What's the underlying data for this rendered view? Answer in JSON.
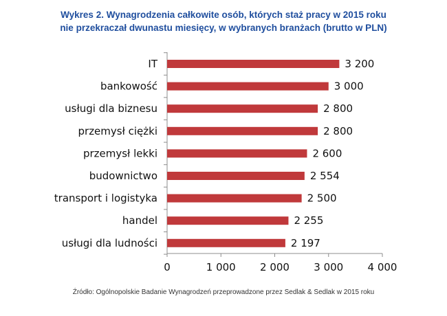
{
  "title": {
    "line1": "Wykres 2. Wynagrodzenia całkowite osób, których staż pracy w 2015 roku",
    "line2": "nie przekraczał dwunastu miesięcy, w wybranych branżach (brutto w PLN)"
  },
  "source": "Źródło: Ogólnopolskie Badanie Wynagrodzeń przeprowadzone przez Sedlak & Sedlak w 2015 roku",
  "colors": {
    "bar": "#c0393b",
    "title": "#1f4e9e",
    "axis": "#8c8c8c"
  },
  "chart_data": {
    "type": "bar",
    "orientation": "horizontal",
    "categories": [
      "IT",
      "bankowość",
      "usługi dla biznesu",
      "przemysł ciężki",
      "przemysł lekki",
      "budownictwo",
      "transport i logistyka",
      "handel",
      "usługi dla ludności"
    ],
    "category_labels": [
      "IT",
      "bankowość",
      "usługi dla biznesu",
      "przemysł ciężki",
      "przemysł lekki",
      "budownictwo",
      "transport i logistyka",
      "handel",
      "usługi dla ludności"
    ],
    "values": [
      3200,
      3000,
      2800,
      2800,
      2600,
      2554,
      2500,
      2255,
      2197
    ],
    "value_labels": [
      "3 200",
      "3 000",
      "2 800",
      "2 800",
      "2 600",
      "2 554",
      "2 500",
      "2 255",
      "2 197"
    ],
    "xlim": [
      0,
      4000
    ],
    "xticks": [
      0,
      1000,
      2000,
      3000,
      4000
    ],
    "xtick_labels": [
      "0",
      "1 000",
      "2 000",
      "3 000",
      "4 000"
    ],
    "grid": false,
    "legend": "none"
  }
}
